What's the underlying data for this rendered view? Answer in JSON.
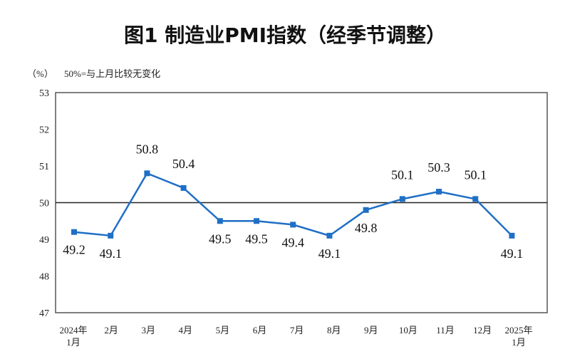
{
  "chart_data": {
    "type": "line",
    "title": "图1  制造业PMI指数（经季节调整）",
    "ylabel": "（%）",
    "annotation": "50%=与上月比较无变化",
    "categories": [
      "2024年\n1月",
      "2月",
      "3月",
      "4月",
      "5月",
      "6月",
      "7月",
      "8月",
      "9月",
      "10月",
      "11月",
      "12月",
      "2025年\n1月"
    ],
    "values": [
      49.2,
      49.1,
      50.8,
      50.4,
      49.5,
      49.5,
      49.4,
      49.1,
      49.8,
      50.1,
      50.3,
      50.1,
      49.1
    ],
    "label_position": [
      "below",
      "below",
      "above",
      "above",
      "below",
      "below",
      "below",
      "below",
      "below",
      "above",
      "above",
      "above",
      "below"
    ],
    "ylim": [
      47,
      53
    ],
    "yticks": [
      47,
      48,
      49,
      50,
      51,
      52,
      53
    ],
    "reference_line": 50,
    "grid": false,
    "legend": "none",
    "line_color": "#1f6fc5"
  }
}
